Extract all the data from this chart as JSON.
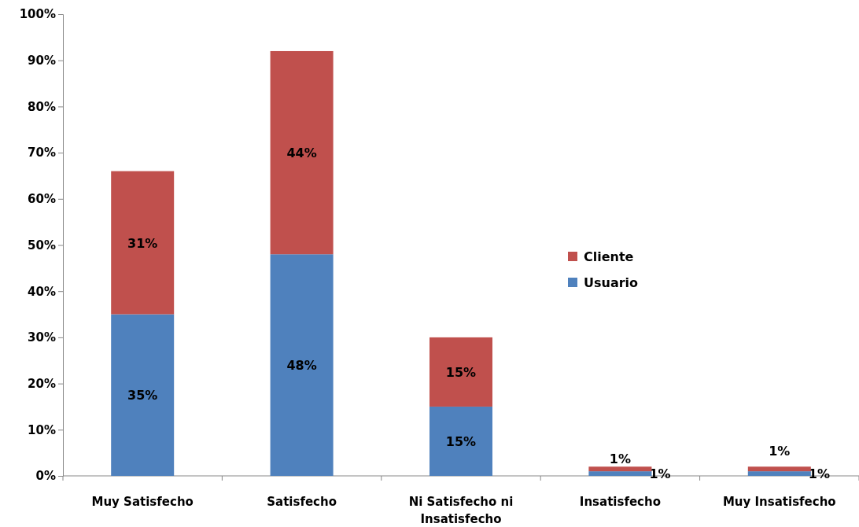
{
  "chart_data": {
    "type": "bar",
    "stacked": true,
    "categories": [
      "Muy Satisfecho",
      "Satisfecho",
      "Ni Satisfecho ni Insatisfecho",
      "Insatisfecho",
      "Muy Insatisfecho"
    ],
    "series": [
      {
        "name": "Usuario",
        "color": "#4f81bd",
        "values": [
          35,
          48,
          15,
          1,
          1
        ],
        "value_labels": [
          "35%",
          "48%",
          "15%",
          "1%",
          "1%"
        ]
      },
      {
        "name": "Cliente",
        "color": "#c0504d",
        "values": [
          31,
          44,
          15,
          1,
          1
        ],
        "value_labels": [
          "31%",
          "44%",
          "15%",
          "1%",
          "1%"
        ]
      }
    ],
    "ylim": [
      0,
      100
    ],
    "yticks": [
      {
        "value": 0,
        "label": "0%"
      },
      {
        "value": 10,
        "label": "10%"
      },
      {
        "value": 20,
        "label": "20%"
      },
      {
        "value": 30,
        "label": "30%"
      },
      {
        "value": 40,
        "label": "40%"
      },
      {
        "value": 50,
        "label": "50%"
      },
      {
        "value": 60,
        "label": "60%"
      },
      {
        "value": 70,
        "label": "70%"
      },
      {
        "value": 80,
        "label": "80%"
      },
      {
        "value": 90,
        "label": "90%"
      },
      {
        "value": 100,
        "label": "100%"
      }
    ],
    "grid": false,
    "legend": "right"
  }
}
